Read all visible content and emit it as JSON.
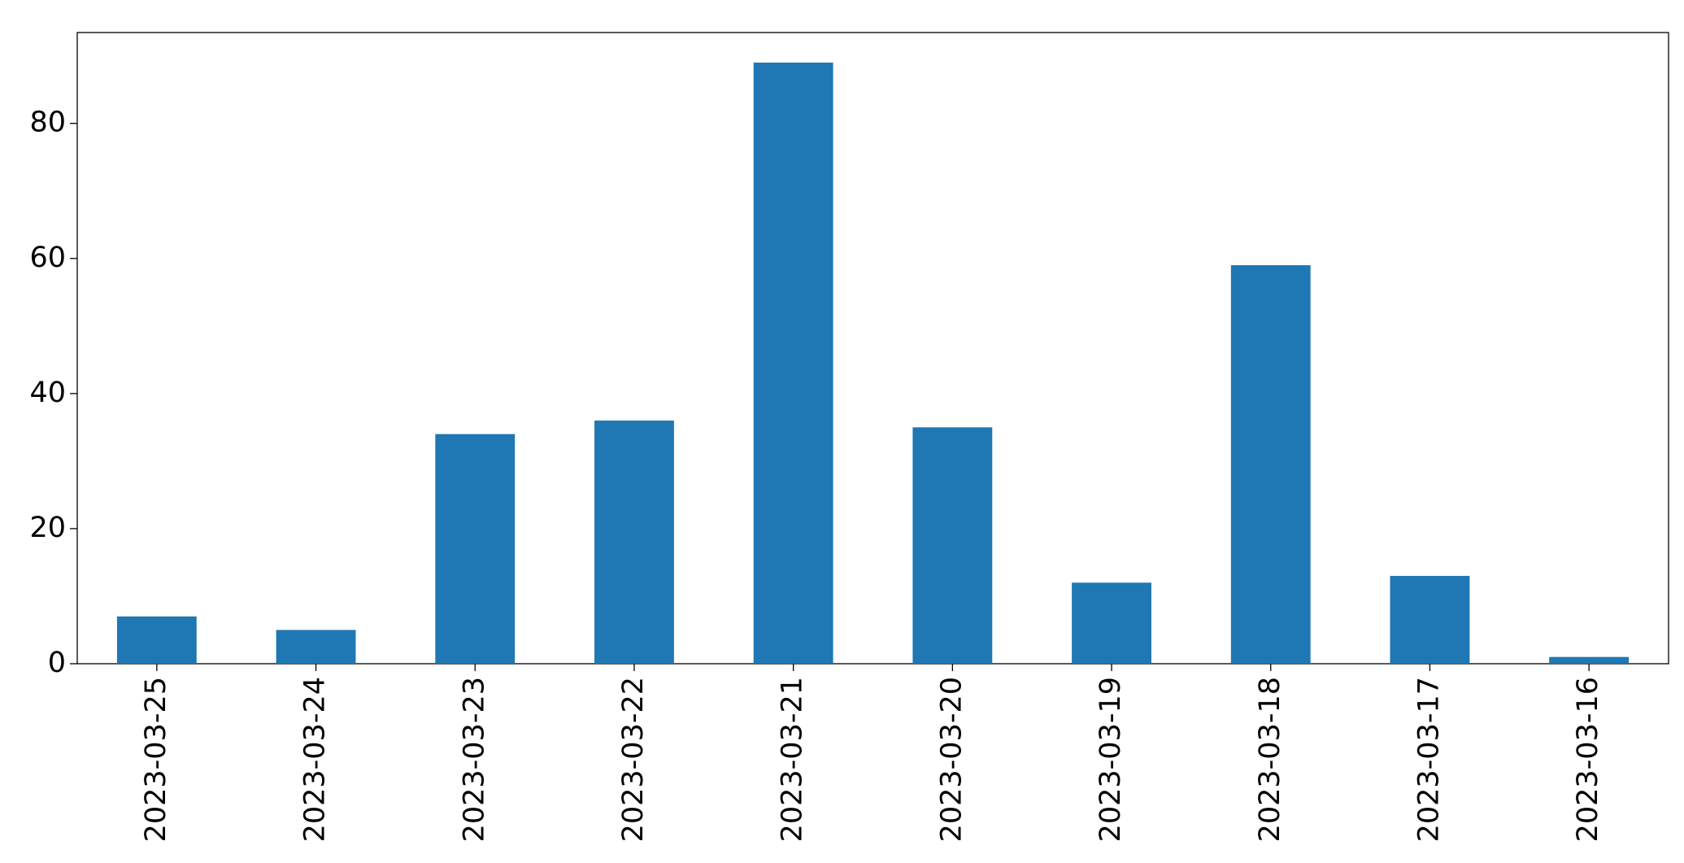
{
  "chart_data": {
    "type": "bar",
    "categories": [
      "2023-03-25",
      "2023-03-24",
      "2023-03-23",
      "2023-03-22",
      "2023-03-21",
      "2023-03-20",
      "2023-03-19",
      "2023-03-18",
      "2023-03-17",
      "2023-03-16"
    ],
    "values": [
      7,
      5,
      34,
      36,
      89,
      35,
      12,
      59,
      13,
      1
    ],
    "color": "#1f77b4",
    "ylim": [
      0,
      93.45
    ],
    "yticks": [
      0,
      20,
      40,
      60,
      80
    ],
    "grid": false
  }
}
